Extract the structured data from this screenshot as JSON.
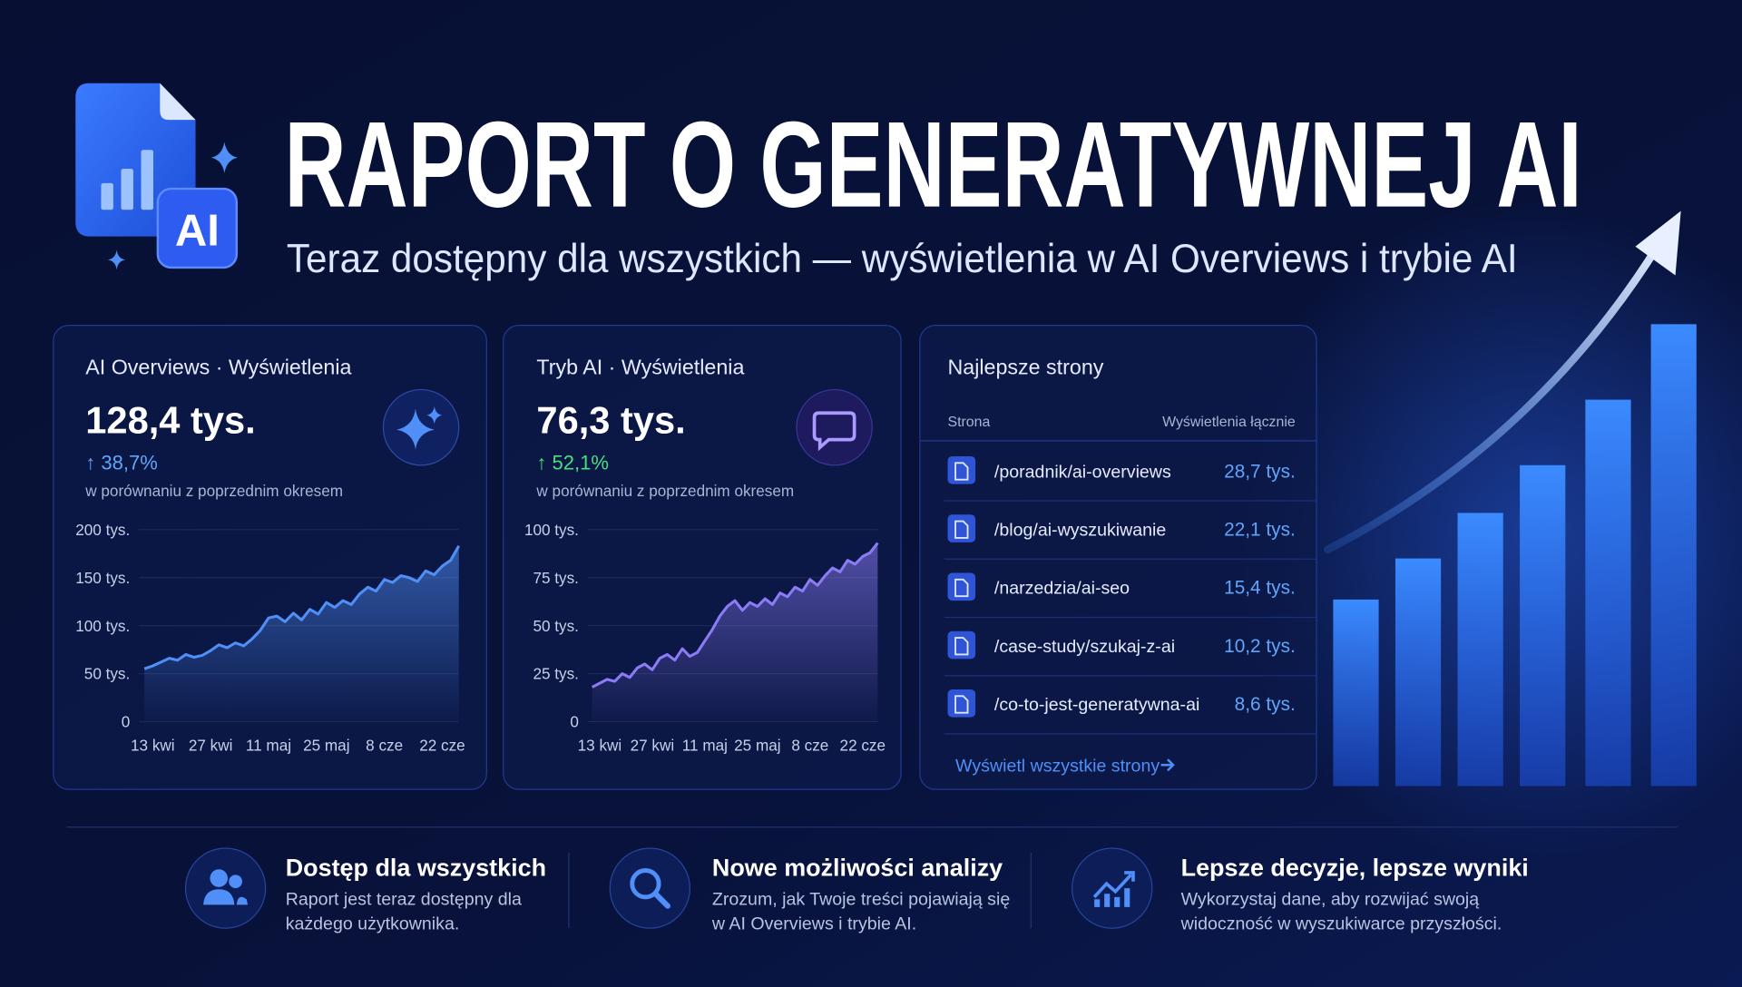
{
  "header": {
    "title": "RAPORT O GENERATYWNEJ AI",
    "subtitle": "Teraz dostępny dla wszystkich — wyświetlenia w AI Overviews i trybie AI",
    "icon_label": "AI"
  },
  "cards": [
    {
      "title": "AI Overviews · Wyświetlenia",
      "value": "128,4 tys.",
      "change": "↑ 38,7%",
      "note": "w porównaniu z poprzednim okresem"
    },
    {
      "title": "Tryb AI · Wyświetlenia",
      "value": "76,3 tys.",
      "change": "↑ 52,1%",
      "note": "w porównaniu z poprzednim okresem"
    }
  ],
  "chart_data": [
    {
      "type": "line",
      "area": true,
      "grid": true,
      "color": "#4f8ff7",
      "categories": [
        null,
        "13 kwi",
        null,
        null,
        null,
        null,
        null,
        null,
        "27 kwi",
        null,
        null,
        null,
        null,
        null,
        null,
        "11 maj",
        null,
        null,
        null,
        null,
        null,
        null,
        "25 maj",
        null,
        null,
        null,
        null,
        null,
        null,
        "8 cze",
        null,
        null,
        null,
        null,
        null,
        null,
        "22 cze",
        null,
        null
      ],
      "values": [
        55,
        58,
        62,
        66,
        64,
        70,
        67,
        69,
        74,
        80,
        77,
        82,
        79,
        86,
        95,
        108,
        110,
        104,
        113,
        106,
        117,
        112,
        124,
        119,
        126,
        122,
        133,
        140,
        136,
        148,
        145,
        152,
        150,
        146,
        157,
        153,
        162,
        168,
        183
      ],
      "ylim": [
        0,
        200
      ],
      "yticks": [
        0,
        {
          "value": 50,
          "label": "50 tys."
        },
        {
          "value": 100,
          "label": "100 tys."
        },
        {
          "value": 150,
          "label": "150 tys."
        },
        {
          "value": 200,
          "label": "200 tys."
        }
      ]
    },
    {
      "type": "line",
      "area": true,
      "grid": true,
      "color": "#8b7cf6",
      "categories": [
        null,
        "13 kwi",
        null,
        null,
        null,
        null,
        null,
        null,
        "27 kwi",
        null,
        null,
        null,
        null,
        null,
        null,
        "11 maj",
        null,
        null,
        null,
        null,
        null,
        null,
        "25 maj",
        null,
        null,
        null,
        null,
        null,
        null,
        "8 cze",
        null,
        null,
        null,
        null,
        null,
        null,
        "22 cze",
        null,
        null
      ],
      "values": [
        18,
        20,
        22,
        21,
        25,
        23,
        28,
        30,
        27,
        33,
        35,
        32,
        38,
        34,
        36,
        42,
        48,
        55,
        60,
        63,
        58,
        62,
        60,
        64,
        61,
        67,
        65,
        70,
        68,
        74,
        71,
        76,
        80,
        78,
        84,
        82,
        86,
        88,
        93
      ],
      "ylim": [
        0,
        100
      ],
      "yticks": [
        0,
        {
          "value": 25,
          "label": "25 tys."
        },
        {
          "value": 50,
          "label": "50 tys."
        },
        {
          "value": 75,
          "label": "75 tys."
        },
        {
          "value": 100,
          "label": "100 tys."
        }
      ]
    }
  ],
  "table": {
    "title": "Najlepsze strony",
    "columns": [
      "Strona",
      "Wyświetlenia łącznie"
    ],
    "rows": [
      [
        "/poradnik/ai-overviews",
        "28,7 tys."
      ],
      [
        "/blog/ai-wyszukiwanie",
        "22,1 tys."
      ],
      [
        "/narzedzia/ai-seo",
        "15,4 tys."
      ],
      [
        "/case-study/szukaj-z-ai",
        "10,2 tys."
      ],
      [
        "/co-to-jest-generatywna-ai",
        "8,6 tys."
      ]
    ],
    "link": "Wyświetl wszystkie strony"
  },
  "features": [
    {
      "title": "Dostęp dla wszystkich",
      "lines": [
        "Raport jest teraz dostępny dla",
        "każdego użytkownika."
      ]
    },
    {
      "title": "Nowe możliwości analizy",
      "lines": [
        "Zrozum, jak Twoje treści pojawiają się",
        "w AI Overviews i trybie AI."
      ]
    },
    {
      "title": "Lepsze decyzje, lepsze wyniki",
      "lines": [
        "Wykorzystaj dane, aby rozwijać swoją",
        "widoczność w wyszukiwarce przyszłości."
      ]
    }
  ]
}
